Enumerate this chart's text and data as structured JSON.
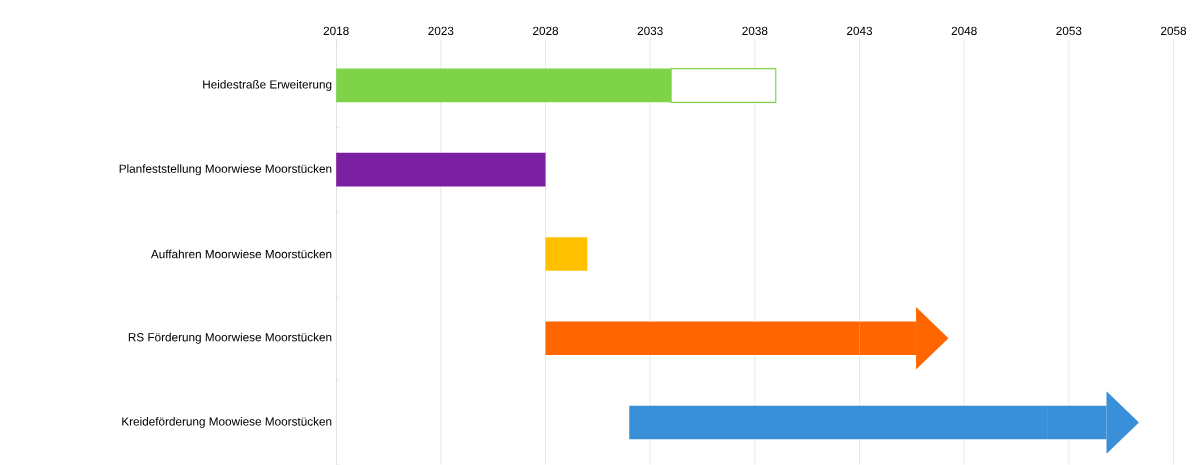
{
  "chart_data": {
    "type": "bar",
    "orientation": "horizontal",
    "categories": [
      "Heidestraße Erweiterung",
      "Planfeststellung Moorwiese Moorstücken",
      "Auffahren Moorwiese Moorstücken",
      "RS Förderung Moorwiese Moorstücken",
      "Kreideförderung Moowiese Moorstücken"
    ],
    "series": [
      {
        "colors": [
          "#7ed348",
          "#7b1fa2",
          "#ffc000",
          "#ff6600",
          "#3a8fd9"
        ],
        "values": [
          16,
          10,
          2,
          15,
          20
        ],
        "base": [
          2018,
          2018,
          2028,
          2028,
          2032
        ]
      },
      {
        "colors": [
          "#ffffff",
          null,
          null,
          "#ff6600",
          "#3a8fd9"
        ],
        "values": [
          5,
          null,
          null,
          2.7,
          2.8
        ],
        "base": [
          2034,
          null,
          null,
          2043,
          2052
        ]
      }
    ],
    "xlim": [
      2018,
      2058
    ],
    "xticks": [
      2018,
      2023,
      2028,
      2033,
      2038,
      2043,
      2048,
      2053,
      2058
    ],
    "grid": "x"
  }
}
